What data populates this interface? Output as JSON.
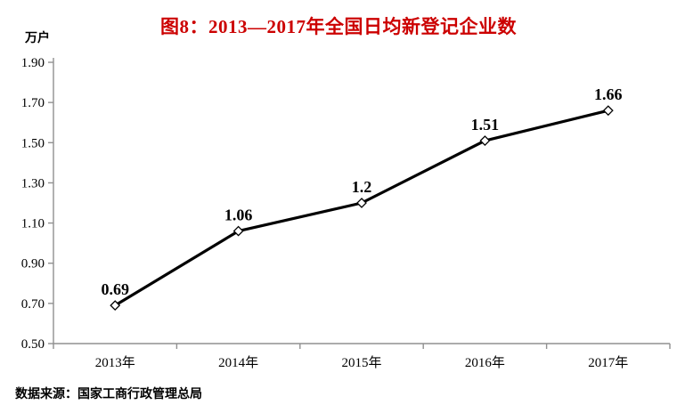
{
  "title": {
    "text": "图8：2013—2017年全国日均新登记企业数",
    "color": "#CC0000"
  },
  "unit_label": "万户",
  "source_note": "数据来源：国家工商行政管理总局",
  "chart_data": {
    "type": "line",
    "title": "图8：2013—2017年全国日均新登记企业数",
    "unit": "万户",
    "categories": [
      "2013年",
      "2014年",
      "2015年",
      "2016年",
      "2017年"
    ],
    "values": [
      0.69,
      1.06,
      1.2,
      1.51,
      1.66
    ],
    "data_labels": [
      "0.69",
      "1.06",
      "1.2",
      "1.51",
      "1.66"
    ],
    "ylim": [
      0.5,
      1.9
    ],
    "ytick_interval": 0.2,
    "ytick_labels": [
      "1.90",
      "1.70",
      "1.50",
      "1.30",
      "1.10",
      "0.90",
      "0.70",
      "0.50"
    ],
    "grid": false,
    "legend": "none",
    "line_color": "#000000",
    "marker_style": "open-diamond",
    "marker_fill": "#ffffff",
    "axis_color": "#909090",
    "label_color": "#000000"
  }
}
